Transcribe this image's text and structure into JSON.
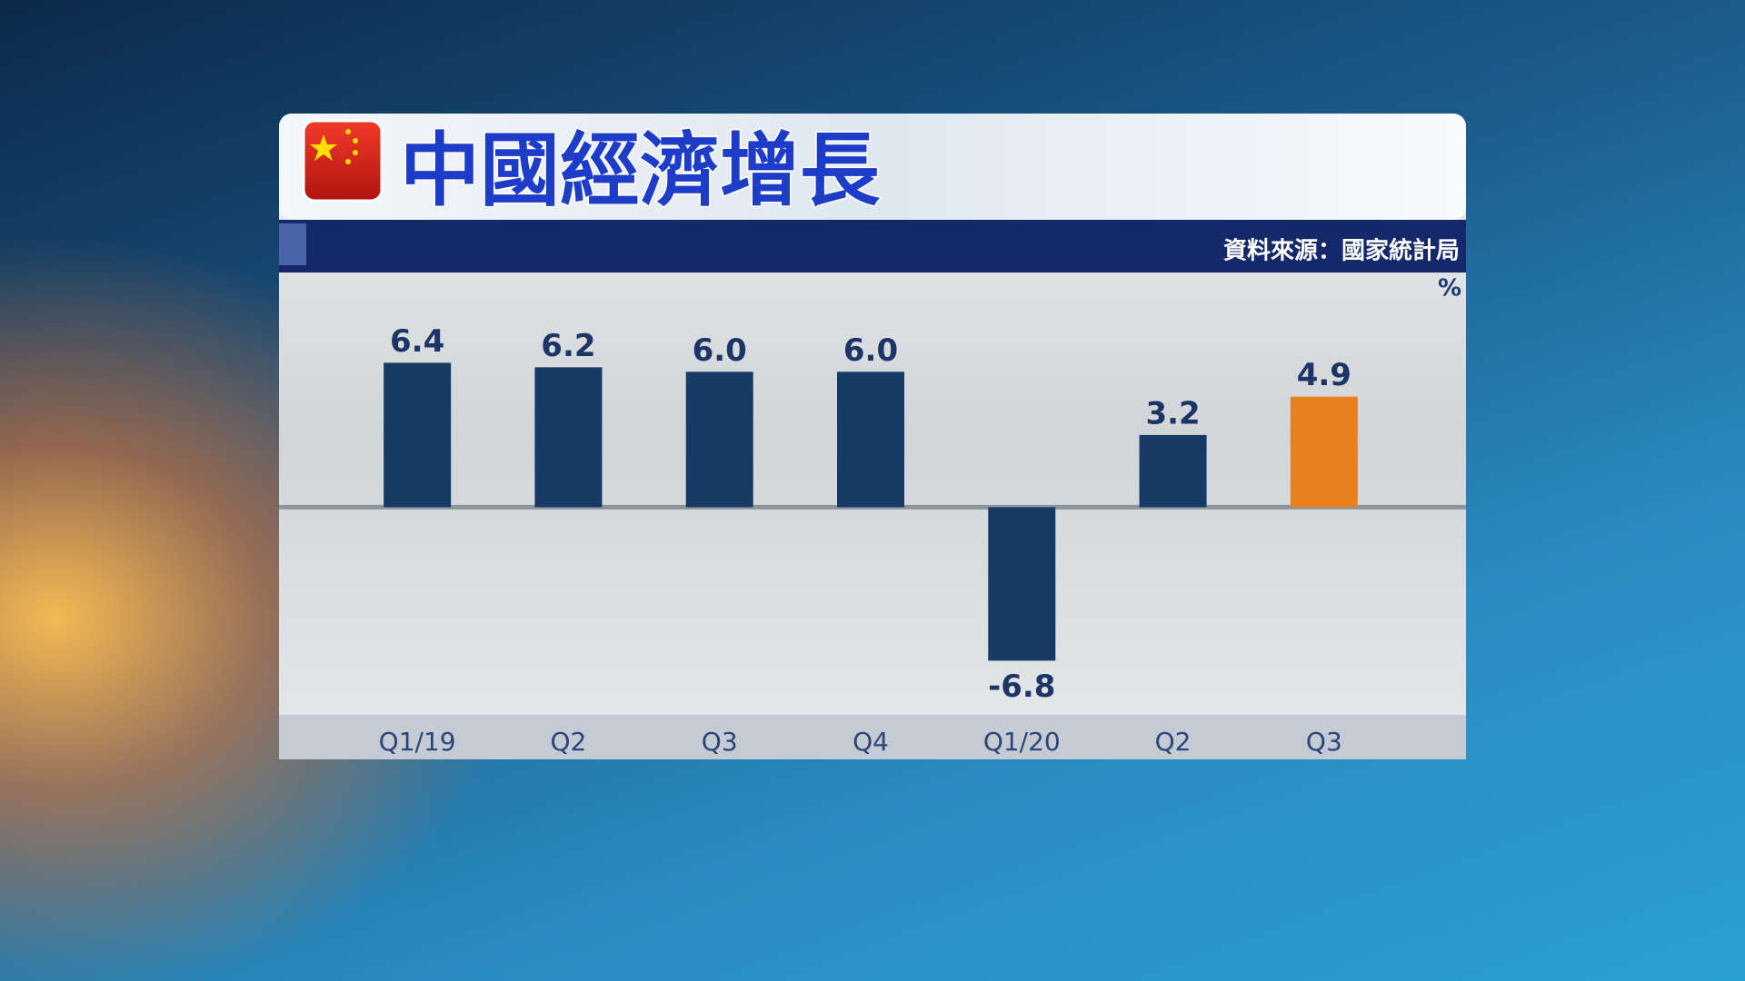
{
  "chart_data": {
    "type": "bar",
    "title": "中國經濟增長",
    "source": "資料來源：國家統計局",
    "unit": "%",
    "categories": [
      "Q1/19",
      "Q2",
      "Q3",
      "Q4",
      "Q1/20",
      "Q2",
      "Q3"
    ],
    "values": [
      6.4,
      6.2,
      6.0,
      6.0,
      -6.8,
      3.2,
      4.9
    ],
    "value_labels": [
      "6.4",
      "6.2",
      "6.0",
      "6.0",
      "-6.8",
      "3.2",
      "4.9"
    ],
    "colors": [
      "#163a63",
      "#163a63",
      "#163a63",
      "#163a63",
      "#163a63",
      "#163a63",
      "#e8801e"
    ],
    "ylim": [
      -9.2,
      10.4
    ]
  }
}
